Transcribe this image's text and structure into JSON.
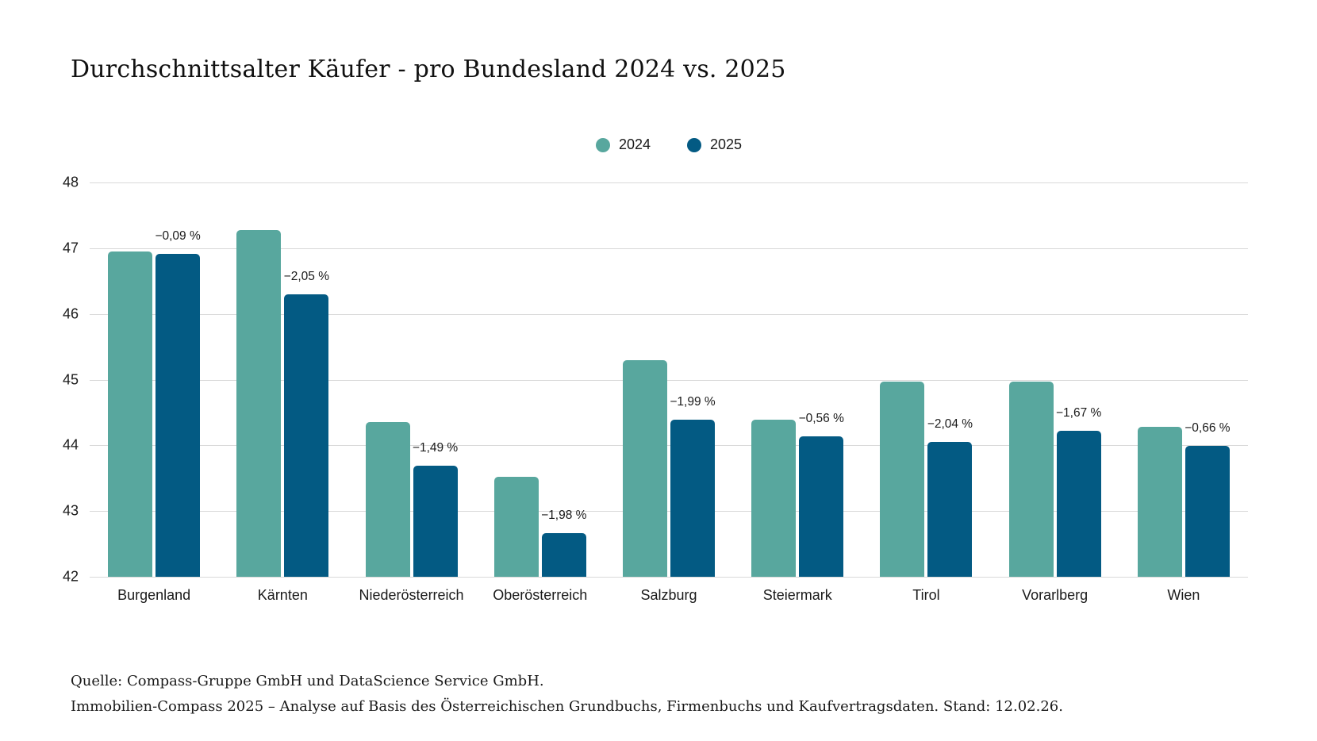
{
  "chart_data": {
    "type": "bar",
    "title": "Durchschnittsalter Käufer - pro Bundesland 2024 vs. 2025",
    "categories": [
      "Burgenland",
      "Kärnten",
      "Niederösterreich",
      "Oberösterreich",
      "Salzburg",
      "Steiermark",
      "Tirol",
      "Vorarlberg",
      "Wien"
    ],
    "series": [
      {
        "name": "2024",
        "color": "#58A79E",
        "values": [
          46.95,
          47.27,
          44.35,
          43.52,
          45.29,
          44.39,
          44.97,
          44.97,
          44.28
        ]
      },
      {
        "name": "2025",
        "color": "#035A83",
        "values": [
          46.91,
          46.3,
          43.69,
          42.66,
          44.39,
          44.14,
          44.05,
          44.22,
          43.99
        ]
      }
    ],
    "annotations_2025": [
      "−0,09 %",
      "−2,05 %",
      "−1,49 %",
      "−1,98 %",
      "−1,99 %",
      "−0,56 %",
      "−2,04 %",
      "−1,67 %",
      "−0,66 %"
    ],
    "xlabel": "",
    "ylabel": "",
    "ylim": [
      42,
      48
    ],
    "yticks": [
      42,
      43,
      44,
      45,
      46,
      47,
      48
    ],
    "grid": true,
    "legend_position": "top-center"
  },
  "footer": {
    "line1": "Quelle: Compass-Gruppe GmbH und DataScience Service GmbH.",
    "line2": "Immobilien-Compass 2025 – Analyse auf Basis des Österreichischen Grundbuchs, Firmenbuchs und Kaufvertragsdaten. Stand: 12.02.26."
  },
  "colors": {
    "series_2024": "#58A79E",
    "series_2025": "#035A83",
    "gridline": "#D9D9D9",
    "text": "#1A1A1A",
    "background": "#FFFFFF"
  }
}
